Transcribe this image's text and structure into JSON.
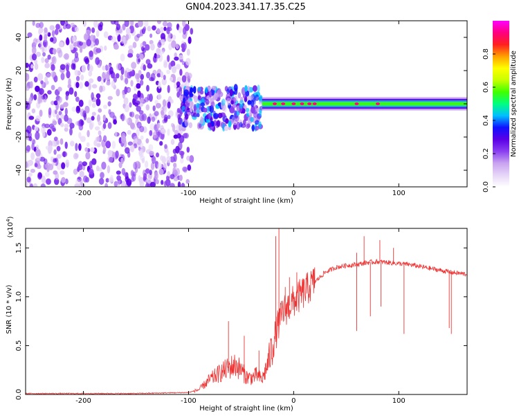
{
  "title": "GN04.2023.341.17.35.C25",
  "chart_data": [
    {
      "type": "heatmap",
      "xlabel": "Height of straight line (km)",
      "ylabel": "Frequency (Hz)",
      "xlim": [
        -255,
        165
      ],
      "ylim": [
        -50,
        50
      ],
      "x_ticks": [
        -200,
        -100,
        0,
        100
      ],
      "y_ticks": [
        -40,
        -20,
        0,
        20,
        40
      ],
      "colorbar": {
        "label": "Normalized spectral amplitude",
        "range": [
          0.0,
          1.0
        ],
        "ticks": [
          "0.0",
          "0.2",
          "0.4",
          "0.6",
          "0.8"
        ],
        "colors": [
          "#ffffff",
          "#e6d5f7",
          "#c9a3f0",
          "#8a3ff0",
          "#5b00e6",
          "#1010ff",
          "#00bfff",
          "#00ff80",
          "#40ff00",
          "#c8ff00",
          "#ffff00",
          "#ffa000",
          "#ff2020",
          "#ff0080",
          "#ff00ff"
        ]
      },
      "regions": [
        {
          "x_range": [
            -255,
            -97
          ],
          "freq_range": [
            -50,
            50
          ],
          "amplitude": [
            0.05,
            0.3
          ]
        },
        {
          "x_range": [
            -110,
            -30
          ],
          "freq_range": [
            -15,
            10
          ],
          "amplitude": [
            0.1,
            0.45
          ]
        },
        {
          "x_range": [
            -30,
            165
          ],
          "freq_range": [
            -4,
            4
          ],
          "amplitude": [
            0.4,
            0.95
          ],
          "center_freq": 0
        }
      ],
      "hotspots_x": [
        -18,
        -10,
        0,
        8,
        15,
        20,
        60,
        80
      ]
    },
    {
      "type": "line",
      "xlabel": "Height of straight line (km)",
      "ylabel": "SNR (10 * v/v)",
      "y_multiplier": "(x10",
      "y_multiplier_exp": "4",
      "y_multiplier_close": ")",
      "xlim": [
        -255,
        165
      ],
      "ylim": [
        0.0,
        1.7
      ],
      "x_ticks": [
        -200,
        -100,
        0,
        100
      ],
      "y_ticks": [
        "0.0",
        "0.5",
        "1.0",
        "1.5"
      ],
      "series": [
        {
          "color": "#ee3333",
          "x": [
            -255,
            -200,
            -150,
            -100,
            -90,
            -80,
            -70,
            -60,
            -55,
            -50,
            -45,
            -40,
            -35,
            -30,
            -25,
            -20,
            -15,
            -10,
            -5,
            0,
            10,
            20,
            30,
            40,
            50,
            60,
            70,
            80,
            90,
            100,
            110,
            120,
            130,
            140,
            150,
            165
          ],
          "y": [
            0.01,
            0.01,
            0.01,
            0.02,
            0.05,
            0.15,
            0.22,
            0.28,
            0.3,
            0.25,
            0.18,
            0.17,
            0.2,
            0.15,
            0.3,
            0.5,
            0.7,
            0.85,
            0.9,
            0.95,
            1.05,
            1.15,
            1.25,
            1.3,
            1.32,
            1.33,
            1.35,
            1.36,
            1.35,
            1.34,
            1.33,
            1.31,
            1.29,
            1.27,
            1.25,
            1.23
          ]
        }
      ],
      "spikes": [
        {
          "x": -62,
          "y": 0.75
        },
        {
          "x": -47,
          "y": 0.6
        },
        {
          "x": -33,
          "y": 0.45
        },
        {
          "x": -17,
          "y": 1.62
        },
        {
          "x": -14,
          "y": 1.7
        },
        {
          "x": -8,
          "y": 1.1
        },
        {
          "x": -4,
          "y": 1.2
        },
        {
          "x": 3,
          "y": 1.25
        },
        {
          "x": 20,
          "y": 1.3
        },
        {
          "x": 60,
          "y": 1.45
        },
        {
          "x": 67,
          "y": 1.62
        },
        {
          "x": 82,
          "y": 1.58
        },
        {
          "x": 95,
          "y": 1.5
        }
      ],
      "dips": [
        {
          "x": 60,
          "y": 0.65
        },
        {
          "x": 73,
          "y": 0.8
        },
        {
          "x": 83,
          "y": 0.9
        },
        {
          "x": 105,
          "y": 0.62
        },
        {
          "x": 148,
          "y": 0.68
        },
        {
          "x": 150,
          "y": 0.62
        }
      ]
    }
  ]
}
